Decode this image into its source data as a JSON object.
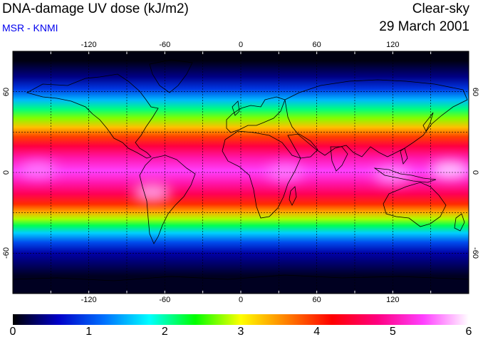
{
  "header": {
    "title": "DNA-damage UV dose (kJ/m2)",
    "source": "MSR - KNMI",
    "condition": "Clear-sky",
    "date": "29 March 2001"
  },
  "map": {
    "lon_ticks": [
      "-120",
      "-60",
      "0",
      "60",
      "120"
    ],
    "lat_ticks": [
      "60",
      "0",
      "-60"
    ],
    "lon_range": [
      -180,
      180
    ],
    "lat_range": [
      -90,
      90
    ],
    "grid_spacing_lon": 30,
    "grid_spacing_lat": 30,
    "bands": [
      {
        "lat_start": 90,
        "lat_end": 76,
        "value": 0.05
      },
      {
        "lat_start": 76,
        "lat_end": 66,
        "value": 0.4
      },
      {
        "lat_start": 66,
        "lat_end": 58,
        "value": 0.9
      },
      {
        "lat_start": 58,
        "lat_end": 50,
        "value": 1.5
      },
      {
        "lat_start": 50,
        "lat_end": 44,
        "value": 2.1
      },
      {
        "lat_start": 44,
        "lat_end": 37,
        "value": 2.7
      },
      {
        "lat_start": 37,
        "lat_end": 30,
        "value": 3.3
      },
      {
        "lat_start": 30,
        "lat_end": 23,
        "value": 3.9
      },
      {
        "lat_start": 23,
        "lat_end": 16,
        "value": 4.5
      },
      {
        "lat_start": 16,
        "lat_end": 6,
        "value": 5.0
      },
      {
        "lat_start": 6,
        "lat_end": -4,
        "value": 5.4
      },
      {
        "lat_start": -4,
        "lat_end": -12,
        "value": 5.0
      },
      {
        "lat_start": -12,
        "lat_end": -20,
        "value": 4.6
      },
      {
        "lat_start": -20,
        "lat_end": -27,
        "value": 4.0
      },
      {
        "lat_start": -27,
        "lat_end": -32,
        "value": 3.4
      },
      {
        "lat_start": -32,
        "lat_end": -37,
        "value": 2.8
      },
      {
        "lat_start": -37,
        "lat_end": -42,
        "value": 2.2
      },
      {
        "lat_start": -42,
        "lat_end": -48,
        "value": 1.6
      },
      {
        "lat_start": -48,
        "lat_end": -56,
        "value": 1.0
      },
      {
        "lat_start": -56,
        "lat_end": -64,
        "value": 0.5
      },
      {
        "lat_start": -64,
        "lat_end": -90,
        "value": 0.1
      }
    ],
    "hotspots": [
      {
        "lon": 165,
        "lat": 2,
        "value": 5.9
      },
      {
        "lon": 120,
        "lat": -2,
        "value": 5.7
      },
      {
        "lon": -70,
        "lat": -15,
        "value": 5.8
      },
      {
        "lon": 35,
        "lat": 0,
        "value": 5.6
      },
      {
        "lon": -160,
        "lat": 2,
        "value": 5.6
      }
    ]
  },
  "colorbar": {
    "labels": [
      "0",
      "1",
      "2",
      "3",
      "4",
      "5",
      "6"
    ],
    "min": 0,
    "max": 6,
    "stops": [
      "#000000",
      "#0000c8",
      "#0070ff",
      "#00ffff",
      "#00ff00",
      "#ffff00",
      "#ff8000",
      "#ff0000",
      "#ff0080",
      "#ff40ff",
      "#ffffff"
    ]
  }
}
